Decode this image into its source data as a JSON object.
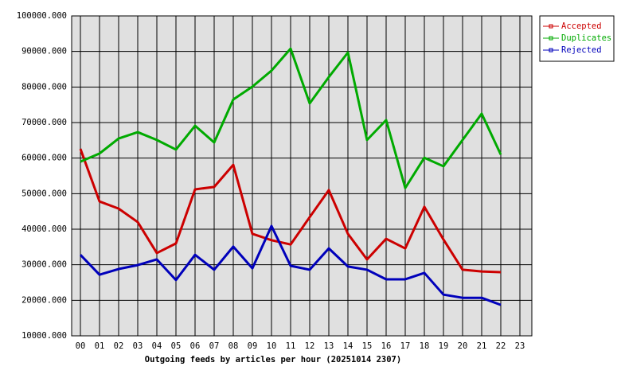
{
  "chart_data": {
    "type": "line",
    "x_label": "Outgoing feeds by articles per hour (20251014 2307)",
    "categories": [
      "00",
      "01",
      "02",
      "03",
      "04",
      "05",
      "06",
      "07",
      "08",
      "09",
      "10",
      "11",
      "12",
      "13",
      "14",
      "15",
      "16",
      "17",
      "18",
      "19",
      "20",
      "21",
      "22",
      "23"
    ],
    "series": [
      {
        "name": "Accepted",
        "color": "#cc0000",
        "values": [
          62600,
          47800,
          45800,
          42000,
          33300,
          36000,
          51200,
          51900,
          58100,
          38700,
          36900,
          35700,
          43400,
          51000,
          38700,
          31500,
          37300,
          34600,
          46300,
          37100,
          28600,
          28100,
          27900,
          null
        ]
      },
      {
        "name": "Duplicates",
        "color": "#00aa00",
        "values": [
          59000,
          61300,
          65500,
          67300,
          65100,
          62400,
          69100,
          64400,
          76500,
          80100,
          84600,
          90800,
          75400,
          82800,
          89700,
          65100,
          70700,
          51600,
          60100,
          57700,
          65100,
          72500,
          61000,
          null
        ]
      },
      {
        "name": "Rejected",
        "color": "#0000bb",
        "values": [
          32800,
          27200,
          28800,
          29900,
          31500,
          25700,
          32800,
          28600,
          35100,
          29000,
          40900,
          29700,
          28600,
          34600,
          29500,
          28600,
          25900,
          25900,
          27700,
          21600,
          20700,
          20700,
          18700,
          null
        ]
      }
    ],
    "ylim": [
      10000,
      100000
    ],
    "yticks": [
      {
        "value": 10000,
        "label": "10000.000"
      },
      {
        "value": 20000,
        "label": "20000.000"
      },
      {
        "value": 30000,
        "label": "30000.000"
      },
      {
        "value": 40000,
        "label": "40000.000"
      },
      {
        "value": 50000,
        "label": "50000.000"
      },
      {
        "value": 60000,
        "label": "60000.000"
      },
      {
        "value": 70000,
        "label": "70000.000"
      },
      {
        "value": 80000,
        "label": "80000.000"
      },
      {
        "value": 90000,
        "label": "90000.000"
      },
      {
        "value": 100000,
        "label": "100000.000"
      }
    ],
    "grid": true,
    "legend": "top-right"
  }
}
